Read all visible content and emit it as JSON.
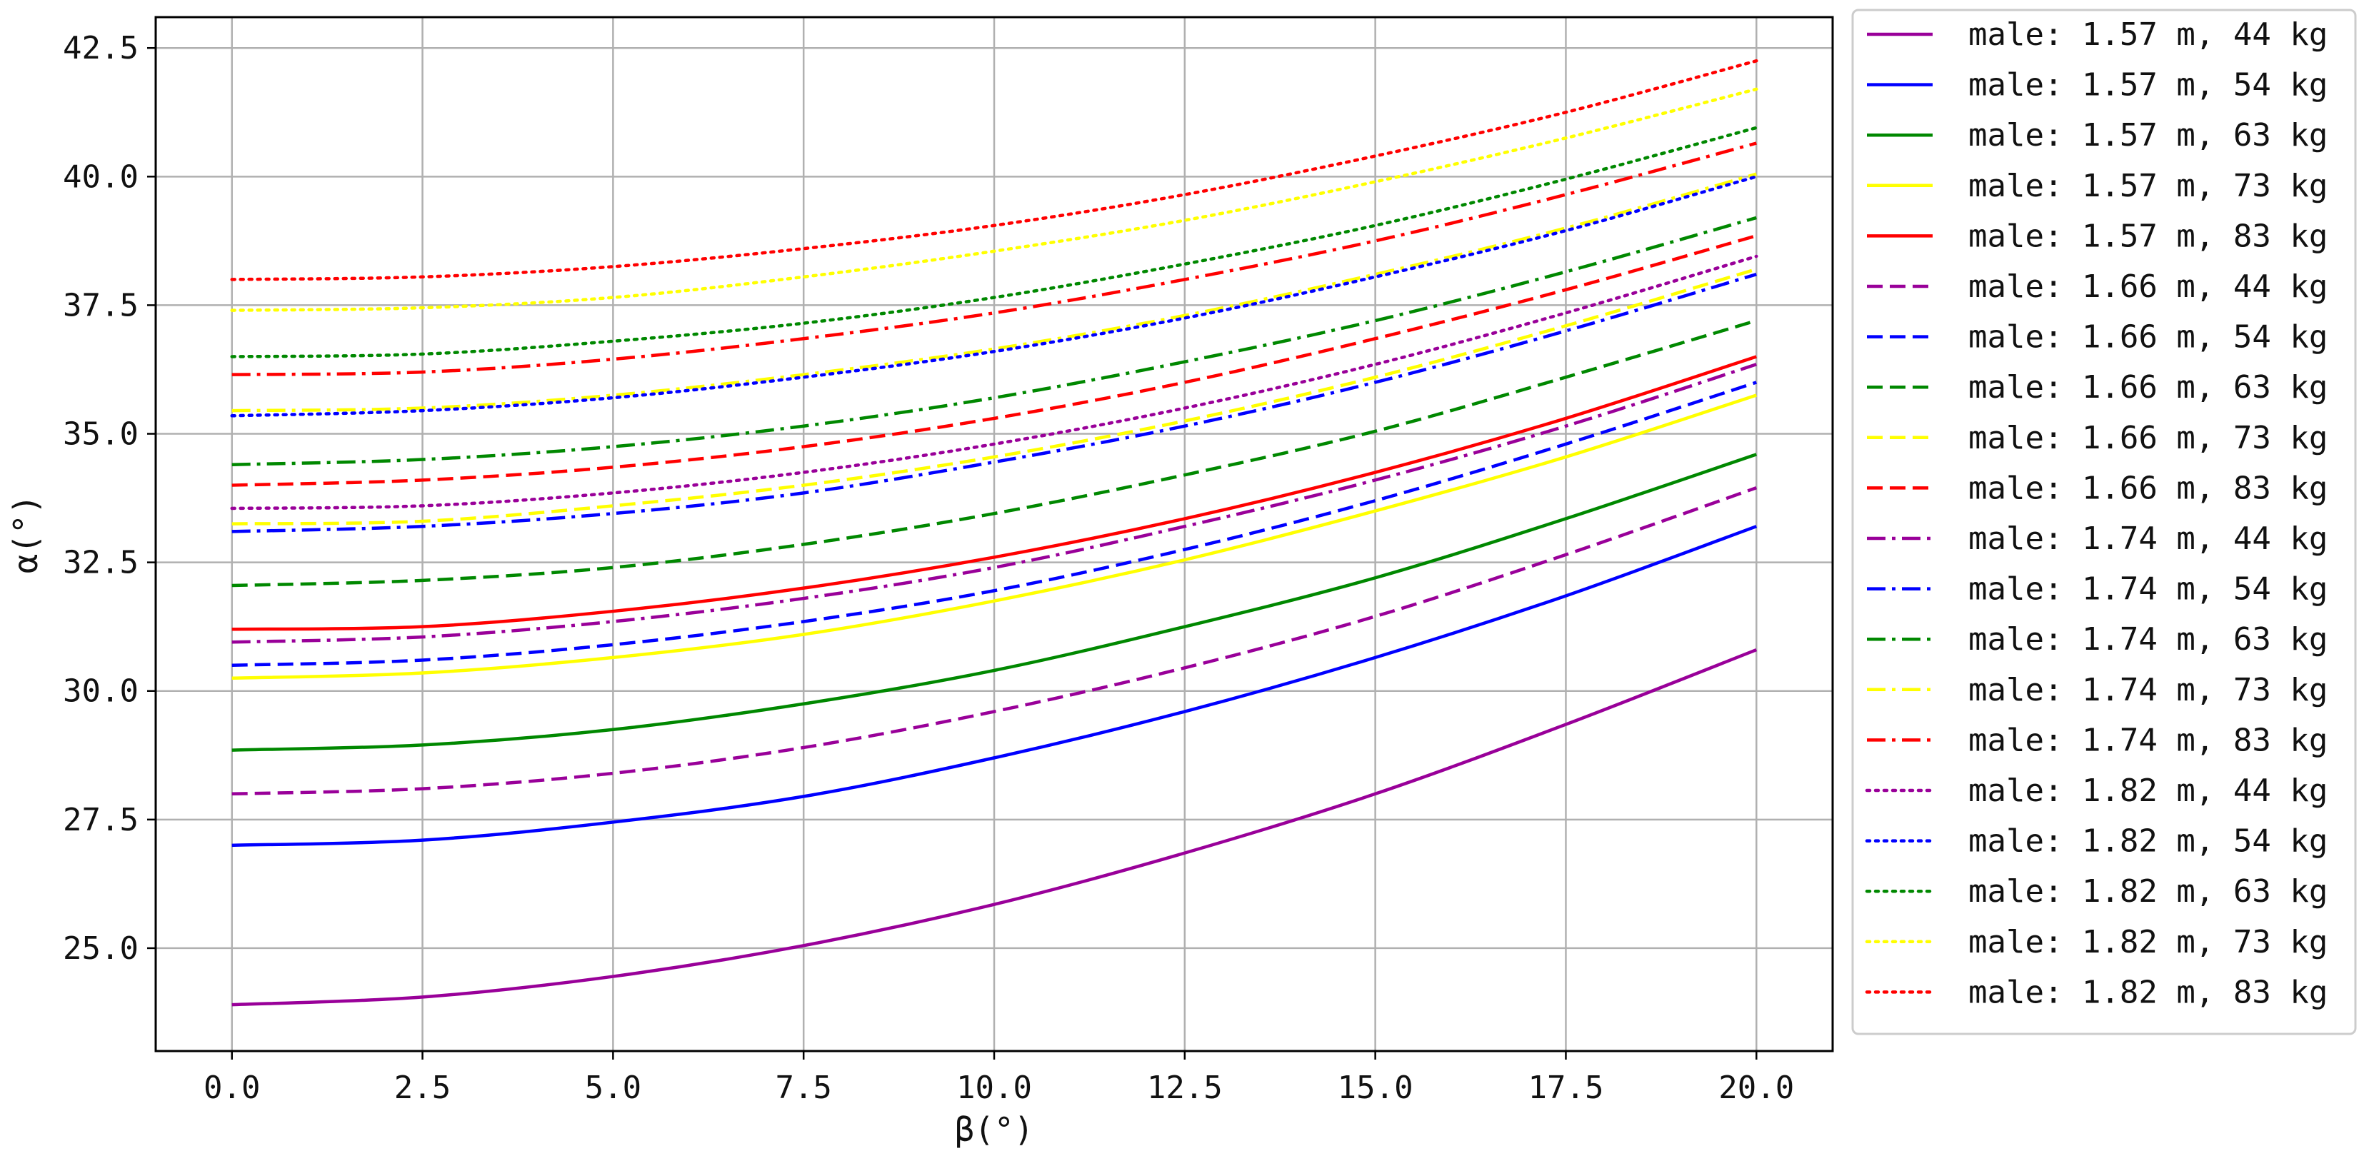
{
  "chart_data": {
    "type": "line",
    "title": "",
    "xlabel": "β(°)",
    "ylabel": "α(°)",
    "xlim": [
      -1.0,
      21.0
    ],
    "ylim": [
      23.0,
      43.1
    ],
    "xticks": [
      0.0,
      2.5,
      5.0,
      7.5,
      10.0,
      12.5,
      15.0,
      17.5,
      20.0
    ],
    "xtick_labels": [
      "0.0",
      "2.5",
      "5.0",
      "7.5",
      "10.0",
      "12.5",
      "15.0",
      "17.5",
      "20.0"
    ],
    "yticks": [
      25.0,
      27.5,
      30.0,
      32.5,
      35.0,
      37.5,
      40.0,
      42.5
    ],
    "ytick_labels": [
      "25.0",
      "27.5",
      "30.0",
      "32.5",
      "35.0",
      "37.5",
      "40.0",
      "42.5"
    ],
    "grid": true,
    "legend_position": "outside-right",
    "x": [
      0,
      2.5,
      5,
      7.5,
      10,
      12.5,
      15,
      17.5,
      20
    ],
    "series": [
      {
        "name": "male: 1.57 m, 44 kg",
        "color": "#990099",
        "style": "solid",
        "values": [
          23.9,
          24.05,
          24.45,
          25.05,
          25.85,
          26.85,
          28.0,
          29.35,
          30.8
        ]
      },
      {
        "name": "male: 1.57 m, 54 kg",
        "color": "#0000ff",
        "style": "solid",
        "values": [
          27.0,
          27.1,
          27.45,
          27.95,
          28.7,
          29.6,
          30.65,
          31.85,
          33.2
        ]
      },
      {
        "name": "male: 1.57 m, 63 kg",
        "color": "#008800",
        "style": "solid",
        "values": [
          28.85,
          28.95,
          29.25,
          29.75,
          30.4,
          31.25,
          32.2,
          33.35,
          34.6
        ]
      },
      {
        "name": "male: 1.57 m, 73 kg",
        "color": "#ffff00",
        "style": "solid",
        "values": [
          30.25,
          30.35,
          30.65,
          31.1,
          31.75,
          32.55,
          33.5,
          34.55,
          35.75
        ]
      },
      {
        "name": "male: 1.57 m, 83 kg",
        "color": "#ff0000",
        "style": "solid",
        "values": [
          31.2,
          31.25,
          31.55,
          32.0,
          32.6,
          33.35,
          34.25,
          35.3,
          36.5
        ]
      },
      {
        "name": "male: 1.66 m, 44 kg",
        "color": "#990099",
        "style": "dashed",
        "values": [
          28.0,
          28.1,
          28.4,
          28.9,
          29.6,
          30.45,
          31.45,
          32.65,
          33.95
        ]
      },
      {
        "name": "male: 1.66 m, 54 kg",
        "color": "#0000ff",
        "style": "dashed",
        "values": [
          30.5,
          30.6,
          30.9,
          31.35,
          31.95,
          32.75,
          33.7,
          34.8,
          36.0
        ]
      },
      {
        "name": "male: 1.66 m, 63 kg",
        "color": "#008800",
        "style": "dashed",
        "values": [
          32.05,
          32.15,
          32.4,
          32.85,
          33.45,
          34.2,
          35.05,
          36.1,
          37.2
        ]
      },
      {
        "name": "male: 1.66 m, 73 kg",
        "color": "#ffff00",
        "style": "dashed",
        "values": [
          33.25,
          33.3,
          33.6,
          34.0,
          34.55,
          35.25,
          36.1,
          37.1,
          38.2
        ]
      },
      {
        "name": "male: 1.66 m, 83 kg",
        "color": "#ff0000",
        "style": "dashed",
        "values": [
          34.0,
          34.1,
          34.35,
          34.75,
          35.3,
          36.0,
          36.85,
          37.8,
          38.85
        ]
      },
      {
        "name": "male: 1.74 m, 44 kg",
        "color": "#990099",
        "style": "dashdot",
        "values": [
          30.95,
          31.05,
          31.35,
          31.8,
          32.4,
          33.2,
          34.1,
          35.15,
          36.35
        ]
      },
      {
        "name": "male: 1.74 m, 54 kg",
        "color": "#0000ff",
        "style": "dashdot",
        "values": [
          33.1,
          33.2,
          33.45,
          33.85,
          34.45,
          35.15,
          36.0,
          37.0,
          38.1
        ]
      },
      {
        "name": "male: 1.74 m, 63 kg",
        "color": "#008800",
        "style": "dashdot",
        "values": [
          34.4,
          34.5,
          34.75,
          35.15,
          35.7,
          36.4,
          37.2,
          38.15,
          39.2
        ]
      },
      {
        "name": "male: 1.74 m, 73 kg",
        "color": "#ffff00",
        "style": "dashdot",
        "values": [
          35.45,
          35.5,
          35.75,
          36.15,
          36.65,
          37.3,
          38.1,
          39.0,
          40.05
        ]
      },
      {
        "name": "male: 1.74 m, 83 kg",
        "color": "#ff0000",
        "style": "dashdot",
        "values": [
          36.15,
          36.2,
          36.45,
          36.85,
          37.35,
          38.0,
          38.75,
          39.65,
          40.65
        ]
      },
      {
        "name": "male: 1.82 m, 44 kg",
        "color": "#990099",
        "style": "dotted",
        "values": [
          33.55,
          33.6,
          33.85,
          34.25,
          34.8,
          35.5,
          36.35,
          37.35,
          38.45
        ]
      },
      {
        "name": "male: 1.82 m, 54 kg",
        "color": "#0000ff",
        "style": "dotted",
        "values": [
          35.35,
          35.45,
          35.7,
          36.1,
          36.6,
          37.25,
          38.05,
          38.95,
          40.0
        ]
      },
      {
        "name": "male: 1.82 m, 63 kg",
        "color": "#008800",
        "style": "dotted",
        "values": [
          36.5,
          36.55,
          36.8,
          37.15,
          37.65,
          38.3,
          39.05,
          39.95,
          40.95
        ]
      },
      {
        "name": "male: 1.82 m, 73 kg",
        "color": "#ffff00",
        "style": "dotted",
        "values": [
          37.4,
          37.45,
          37.65,
          38.05,
          38.55,
          39.15,
          39.9,
          40.75,
          41.7
        ]
      },
      {
        "name": "male: 1.82 m, 83 kg",
        "color": "#ff0000",
        "style": "dotted",
        "values": [
          38.0,
          38.05,
          38.25,
          38.6,
          39.05,
          39.65,
          40.4,
          41.25,
          42.25
        ]
      }
    ]
  }
}
